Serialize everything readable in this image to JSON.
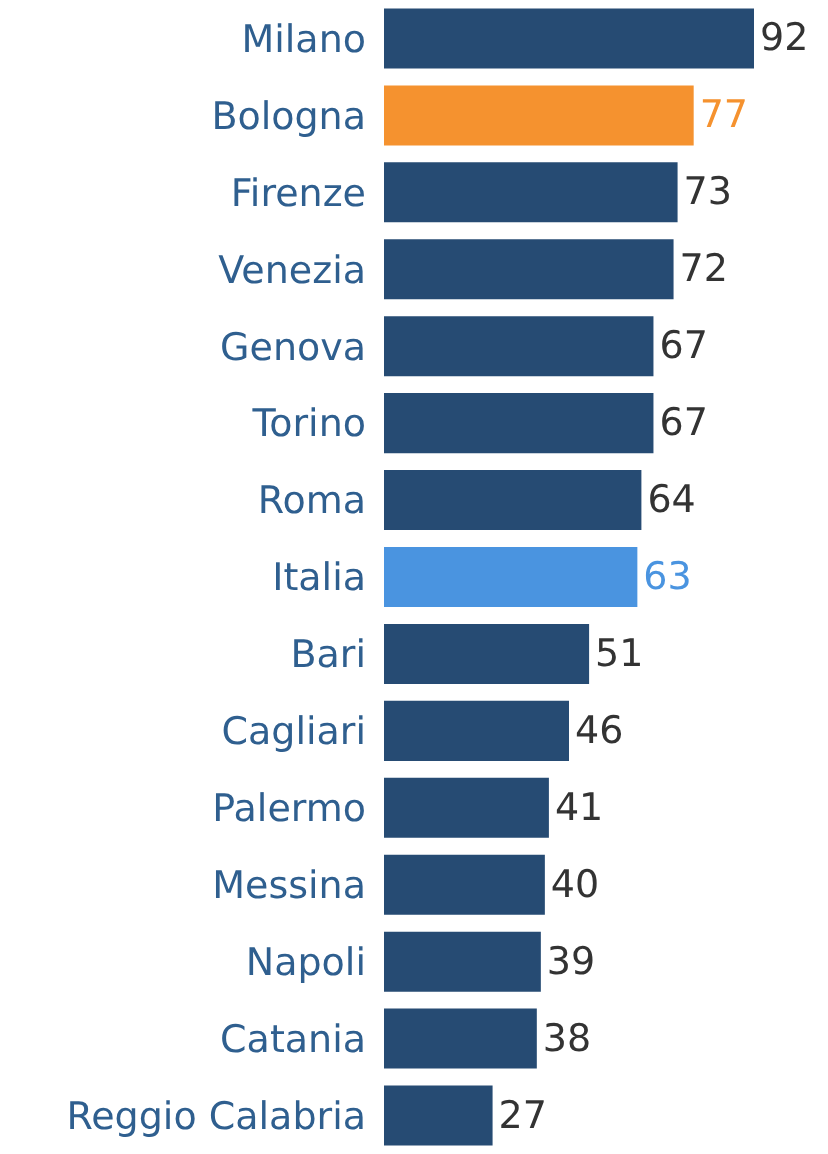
{
  "chart_data": {
    "type": "bar",
    "orientation": "horizontal",
    "categories": [
      "Milano",
      "Bologna",
      "Firenze",
      "Venezia",
      "Genova",
      "Torino",
      "Roma",
      "Italia",
      "Bari",
      "Cagliari",
      "Palermo",
      "Messina",
      "Napoli",
      "Catania",
      "Reggio Calabria"
    ],
    "values": [
      92,
      77,
      73,
      72,
      67,
      67,
      64,
      63,
      51,
      46,
      41,
      40,
      39,
      38,
      27
    ],
    "colors": [
      "#264b73",
      "#f5922f",
      "#264b73",
      "#264b73",
      "#264b73",
      "#264b73",
      "#264b73",
      "#4a94e0",
      "#264b73",
      "#264b73",
      "#264b73",
      "#264b73",
      "#264b73",
      "#264b73",
      "#264b73"
    ],
    "data_labels": true,
    "tick_labels": "y"
  }
}
